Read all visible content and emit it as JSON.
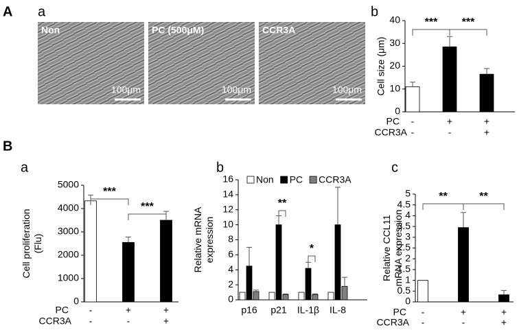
{
  "figure": {
    "sections": [
      "A",
      "B"
    ],
    "images": {
      "panel": "a",
      "items": [
        {
          "label": "Non",
          "scale": "100μm"
        },
        {
          "label": "PC (500μM)",
          "scale": "100μm"
        },
        {
          "label": "CCR3A",
          "scale": "100μm"
        }
      ]
    }
  },
  "chart_data": [
    {
      "type": "bar",
      "panel": "b",
      "ylabel": [
        "Cell size (μm)"
      ],
      "categories": [
        null,
        null,
        null
      ],
      "series": [
        {
          "values": [
            11,
            28.5,
            16.5
          ],
          "errors": [
            2,
            4.5,
            2.5
          ],
          "colors": [
            "#ffffff",
            "#000000",
            "#000000"
          ]
        }
      ],
      "ylim": [
        0,
        40
      ],
      "yticks": [
        0,
        10,
        20,
        30,
        40
      ],
      "conditions": [
        {
          "name": "PC",
          "values": [
            "-",
            "+",
            "+"
          ]
        },
        {
          "name": "CCR3A",
          "values": [
            "-",
            "-",
            "+"
          ]
        }
      ],
      "significance": [
        {
          "text": "***",
          "from": 0,
          "to": 1
        },
        {
          "text": "***",
          "from": 1,
          "to": 2
        }
      ]
    },
    {
      "type": "bar",
      "panel": "a",
      "ylabel": [
        "Cell proliferation",
        "(Flu)"
      ],
      "categories": [
        null,
        null,
        null
      ],
      "series": [
        {
          "values": [
            4330,
            2550,
            3500
          ],
          "errors": [
            250,
            230,
            380
          ],
          "colors": [
            "#ffffff",
            "#000000",
            "#000000"
          ]
        }
      ],
      "ylim": [
        0,
        5000
      ],
      "yticks": [
        0,
        1000,
        2000,
        3000,
        4000,
        5000
      ],
      "conditions": [
        {
          "name": "PC",
          "values": [
            "-",
            "+",
            "+"
          ]
        },
        {
          "name": "CCR3A",
          "values": [
            "-",
            "-",
            "+"
          ]
        }
      ],
      "significance": [
        {
          "text": "***",
          "from": 0,
          "to": 1
        },
        {
          "text": "***",
          "from": 1,
          "to": 2
        }
      ]
    },
    {
      "type": "bar",
      "panel": "b",
      "ylabel": [
        "Relative mRNA",
        "expression"
      ],
      "categories": [
        "p16",
        "p21",
        "IL-1β",
        "IL-8"
      ],
      "series": [
        {
          "name": "Non",
          "color": "#ffffff",
          "values": [
            1,
            1,
            1,
            1
          ],
          "errors": [
            null,
            null,
            null,
            null
          ]
        },
        {
          "name": "PC",
          "color": "#000000",
          "values": [
            4.5,
            10,
            4.2,
            10
          ],
          "errors": [
            2.5,
            1.2,
            0.8,
            5
          ]
        },
        {
          "name": "CCR3A",
          "color": "#808080",
          "values": [
            1.1,
            0.7,
            0.7,
            1.8
          ],
          "errors": [
            0.2,
            0.1,
            0.1,
            1.2
          ]
        }
      ],
      "ylim": [
        0,
        16
      ],
      "yticks": [
        0,
        2,
        4,
        6,
        8,
        10,
        12,
        14,
        16
      ],
      "legend": "top",
      "significance": [
        {
          "text": "**",
          "category": 1,
          "from": 1,
          "to": 2
        },
        {
          "text": "*",
          "category": 2,
          "from": 1,
          "to": 2
        }
      ]
    },
    {
      "type": "bar",
      "panel": "c",
      "ylabel": [
        "Relative CCL11",
        "mRNA expression"
      ],
      "categories": [
        null,
        null,
        null
      ],
      "series": [
        {
          "values": [
            1,
            3.45,
            0.33
          ],
          "errors": [
            null,
            0.7,
            0.2
          ],
          "colors": [
            "#ffffff",
            "#000000",
            "#000000"
          ]
        }
      ],
      "ylim": [
        0,
        5
      ],
      "yticks": [
        0,
        0.5,
        1,
        1.5,
        2,
        2.5,
        3,
        3.5,
        4,
        4.5,
        5
      ],
      "conditions": [
        {
          "name": "PC",
          "values": [
            "-",
            "+",
            "+"
          ]
        },
        {
          "name": "CCR3A",
          "values": [
            "-",
            "-",
            "+"
          ]
        }
      ],
      "significance": [
        {
          "text": "**",
          "from": 0,
          "to": 1
        },
        {
          "text": "**",
          "from": 1,
          "to": 2
        }
      ]
    }
  ]
}
